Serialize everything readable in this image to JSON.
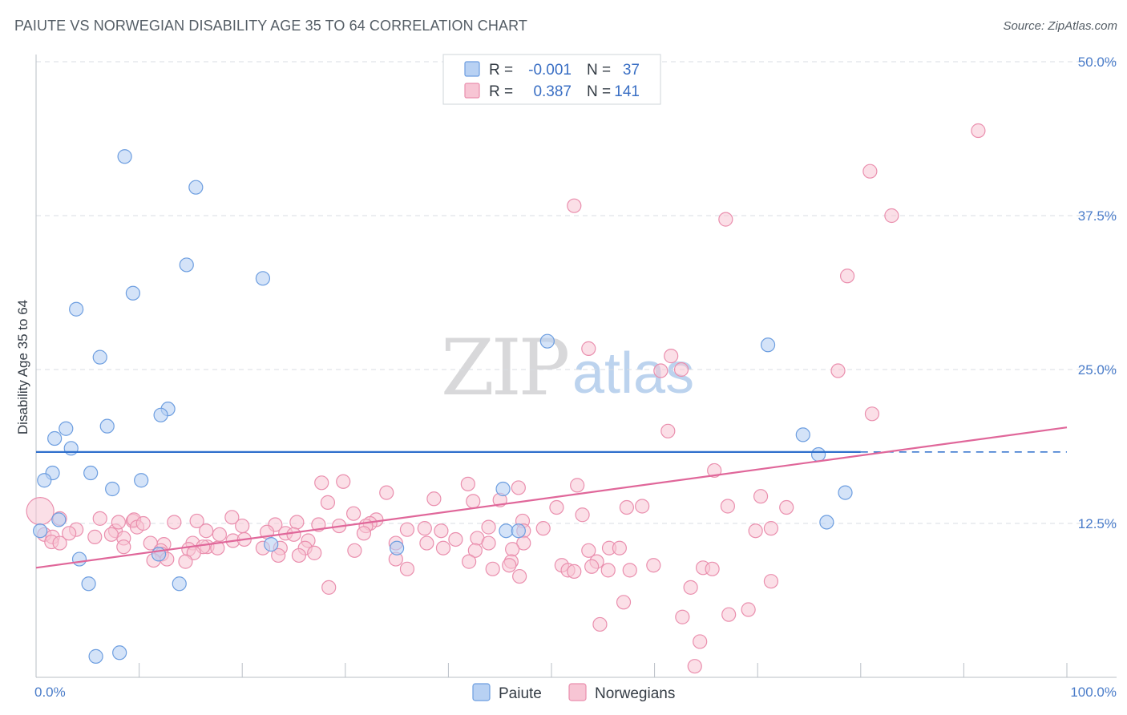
{
  "title": "PAIUTE VS NORWEGIAN DISABILITY AGE 35 TO 64 CORRELATION CHART",
  "source": "Source: ZipAtlas.com",
  "watermark": {
    "zip": "ZIP",
    "atlas": "atlas"
  },
  "colors": {
    "paiute_fill": "#b8d1f3",
    "paiute_stroke": "#6d9ee0",
    "paiute_line": "#2f6fcc",
    "norwegian_fill": "#f7c5d4",
    "norwegian_stroke": "#ea8fae",
    "norwegian_line": "#e0679a",
    "tick_color": "#4a7cc9",
    "grid": "#d9dde3"
  },
  "legend": {
    "rows": [
      {
        "r_label": "R =",
        "r_value": "-0.001",
        "n_label": "N =",
        "n_value": "37"
      },
      {
        "r_label": "R =",
        "r_value": "0.387",
        "n_label": "N =",
        "n_value": "141"
      }
    ]
  },
  "chart_data": {
    "type": "scatter",
    "title": "PAIUTE VS NORWEGIAN DISABILITY AGE 35 TO 64 CORRELATION CHART",
    "xlabel": "",
    "ylabel": "Disability Age 35 to 64",
    "xlim": [
      0,
      100
    ],
    "ylim": [
      0,
      50
    ],
    "x_tick_labels": [
      "0.0%",
      "100.0%"
    ],
    "y_ticks": [
      12.5,
      25.0,
      37.5,
      50.0
    ],
    "y_tick_labels": [
      "12.5%",
      "25.0%",
      "37.5%",
      "50.0%"
    ],
    "grid": true,
    "legend_position": "bottom",
    "series": [
      {
        "name": "Paiute",
        "r": -0.001,
        "n": 37,
        "trend": {
          "x0": 0,
          "y0": 18.3,
          "x1": 80,
          "y1": 18.3,
          "dashed_to": 100
        },
        "points": [
          [
            8.6,
            42.3
          ],
          [
            15.5,
            39.8
          ],
          [
            14.6,
            33.5
          ],
          [
            22.0,
            32.4
          ],
          [
            9.4,
            31.2
          ],
          [
            3.9,
            29.9
          ],
          [
            6.2,
            26.0
          ],
          [
            49.6,
            27.3
          ],
          [
            71.0,
            27.0
          ],
          [
            12.8,
            21.8
          ],
          [
            12.1,
            21.3
          ],
          [
            6.9,
            20.4
          ],
          [
            2.9,
            20.2
          ],
          [
            1.8,
            19.4
          ],
          [
            3.4,
            18.6
          ],
          [
            74.4,
            19.7
          ],
          [
            75.9,
            18.1
          ],
          [
            1.6,
            16.6
          ],
          [
            5.3,
            16.6
          ],
          [
            0.8,
            16.0
          ],
          [
            10.2,
            16.0
          ],
          [
            7.4,
            15.3
          ],
          [
            45.3,
            15.3
          ],
          [
            78.5,
            15.0
          ],
          [
            2.2,
            12.8
          ],
          [
            76.7,
            12.6
          ],
          [
            0.4,
            11.9
          ],
          [
            45.6,
            11.9
          ],
          [
            46.8,
            11.9
          ],
          [
            22.8,
            10.8
          ],
          [
            35.0,
            10.5
          ],
          [
            11.9,
            10.0
          ],
          [
            4.2,
            9.6
          ],
          [
            5.1,
            7.6
          ],
          [
            13.9,
            7.6
          ],
          [
            8.1,
            2.0
          ],
          [
            5.8,
            1.7
          ]
        ]
      },
      {
        "name": "Norwegians",
        "r": 0.387,
        "n": 141,
        "trend": {
          "x0": 0,
          "y0": 8.9,
          "x1": 100,
          "y1": 20.3
        },
        "points": [
          [
            91.4,
            44.4
          ],
          [
            80.9,
            41.1
          ],
          [
            52.2,
            38.3
          ],
          [
            83.0,
            37.5
          ],
          [
            66.9,
            37.2
          ],
          [
            78.7,
            32.6
          ],
          [
            53.6,
            26.7
          ],
          [
            61.6,
            26.1
          ],
          [
            60.6,
            24.9
          ],
          [
            62.6,
            25.0
          ],
          [
            77.8,
            24.9
          ],
          [
            81.1,
            21.4
          ],
          [
            61.3,
            20.0
          ],
          [
            65.8,
            16.8
          ],
          [
            27.7,
            15.8
          ],
          [
            29.8,
            15.9
          ],
          [
            41.9,
            15.7
          ],
          [
            52.5,
            15.6
          ],
          [
            46.8,
            15.4
          ],
          [
            34.0,
            15.0
          ],
          [
            38.6,
            14.5
          ],
          [
            70.3,
            14.7
          ],
          [
            42.4,
            14.3
          ],
          [
            45.0,
            14.4
          ],
          [
            28.3,
            14.2
          ],
          [
            50.5,
            13.8
          ],
          [
            57.3,
            13.8
          ],
          [
            58.8,
            13.9
          ],
          [
            67.1,
            13.9
          ],
          [
            72.8,
            13.8
          ],
          [
            30.8,
            13.3
          ],
          [
            19.0,
            13.0
          ],
          [
            25.3,
            12.6
          ],
          [
            33.0,
            12.8
          ],
          [
            2.3,
            12.9
          ],
          [
            6.2,
            12.9
          ],
          [
            9.4,
            12.7
          ],
          [
            9.5,
            12.8
          ],
          [
            32.4,
            12.5
          ],
          [
            20.0,
            12.3
          ],
          [
            23.2,
            12.4
          ],
          [
            27.4,
            12.4
          ],
          [
            29.4,
            12.3
          ],
          [
            32.0,
            12.3
          ],
          [
            47.2,
            12.7
          ],
          [
            53.0,
            13.2
          ],
          [
            43.9,
            12.2
          ],
          [
            36.0,
            12.0
          ],
          [
            37.7,
            12.1
          ],
          [
            39.3,
            11.9
          ],
          [
            47.3,
            11.9
          ],
          [
            49.2,
            12.1
          ],
          [
            69.8,
            11.9
          ],
          [
            71.3,
            12.1
          ],
          [
            3.9,
            12.0
          ],
          [
            7.7,
            11.9
          ],
          [
            9.8,
            12.2
          ],
          [
            16.5,
            11.9
          ],
          [
            24.2,
            11.7
          ],
          [
            8.0,
            12.6
          ],
          [
            13.4,
            12.6
          ],
          [
            15.6,
            12.7
          ],
          [
            10.4,
            12.5
          ],
          [
            0.8,
            11.6
          ],
          [
            1.6,
            11.4
          ],
          [
            17.8,
            11.6
          ],
          [
            19.1,
            11.1
          ],
          [
            22.4,
            11.8
          ],
          [
            25.0,
            11.6
          ],
          [
            31.8,
            11.7
          ],
          [
            42.8,
            11.3
          ],
          [
            3.2,
            11.7
          ],
          [
            5.7,
            11.4
          ],
          [
            8.5,
            11.3
          ],
          [
            20.2,
            11.2
          ],
          [
            26.4,
            11.1
          ],
          [
            40.7,
            11.2
          ],
          [
            43.9,
            10.9
          ],
          [
            34.9,
            10.9
          ],
          [
            37.9,
            10.9
          ],
          [
            1.5,
            11.0
          ],
          [
            2.3,
            10.9
          ],
          [
            12.4,
            10.8
          ],
          [
            15.2,
            10.9
          ],
          [
            16.6,
            10.6
          ],
          [
            17.6,
            10.5
          ],
          [
            23.7,
            10.5
          ],
          [
            26.1,
            10.5
          ],
          [
            30.9,
            10.3
          ],
          [
            39.5,
            10.5
          ],
          [
            47.3,
            10.9
          ],
          [
            55.6,
            10.5
          ],
          [
            56.6,
            10.5
          ],
          [
            7.3,
            11.6
          ],
          [
            11.1,
            10.9
          ],
          [
            12.1,
            10.3
          ],
          [
            14.8,
            10.4
          ],
          [
            22.0,
            10.5
          ],
          [
            27.0,
            10.1
          ],
          [
            42.6,
            10.3
          ],
          [
            46.2,
            10.4
          ],
          [
            23.5,
            9.9
          ],
          [
            25.5,
            9.9
          ],
          [
            8.5,
            10.6
          ],
          [
            12.2,
            10.0
          ],
          [
            16.2,
            10.6
          ],
          [
            53.6,
            10.3
          ],
          [
            12.7,
            9.6
          ],
          [
            15.3,
            10.1
          ],
          [
            14.5,
            9.4
          ],
          [
            11.4,
            9.5
          ],
          [
            34.9,
            9.6
          ],
          [
            42.0,
            9.4
          ],
          [
            46.1,
            9.4
          ],
          [
            54.4,
            9.4
          ],
          [
            59.9,
            9.1
          ],
          [
            36.0,
            8.8
          ],
          [
            45.9,
            9.1
          ],
          [
            51.0,
            9.1
          ],
          [
            53.9,
            9.0
          ],
          [
            51.6,
            8.7
          ],
          [
            55.5,
            8.7
          ],
          [
            57.6,
            8.7
          ],
          [
            44.3,
            8.8
          ],
          [
            64.7,
            8.9
          ],
          [
            65.6,
            8.8
          ],
          [
            52.2,
            8.6
          ],
          [
            46.9,
            8.2
          ],
          [
            71.3,
            7.8
          ],
          [
            28.4,
            7.3
          ],
          [
            63.5,
            7.3
          ],
          [
            57.0,
            6.1
          ],
          [
            69.1,
            5.5
          ],
          [
            67.2,
            5.1
          ],
          [
            62.7,
            4.9
          ],
          [
            54.7,
            4.3
          ],
          [
            64.4,
            2.9
          ],
          [
            63.9,
            0.9
          ],
          [
            0.4,
            13.5
          ]
        ]
      }
    ]
  }
}
